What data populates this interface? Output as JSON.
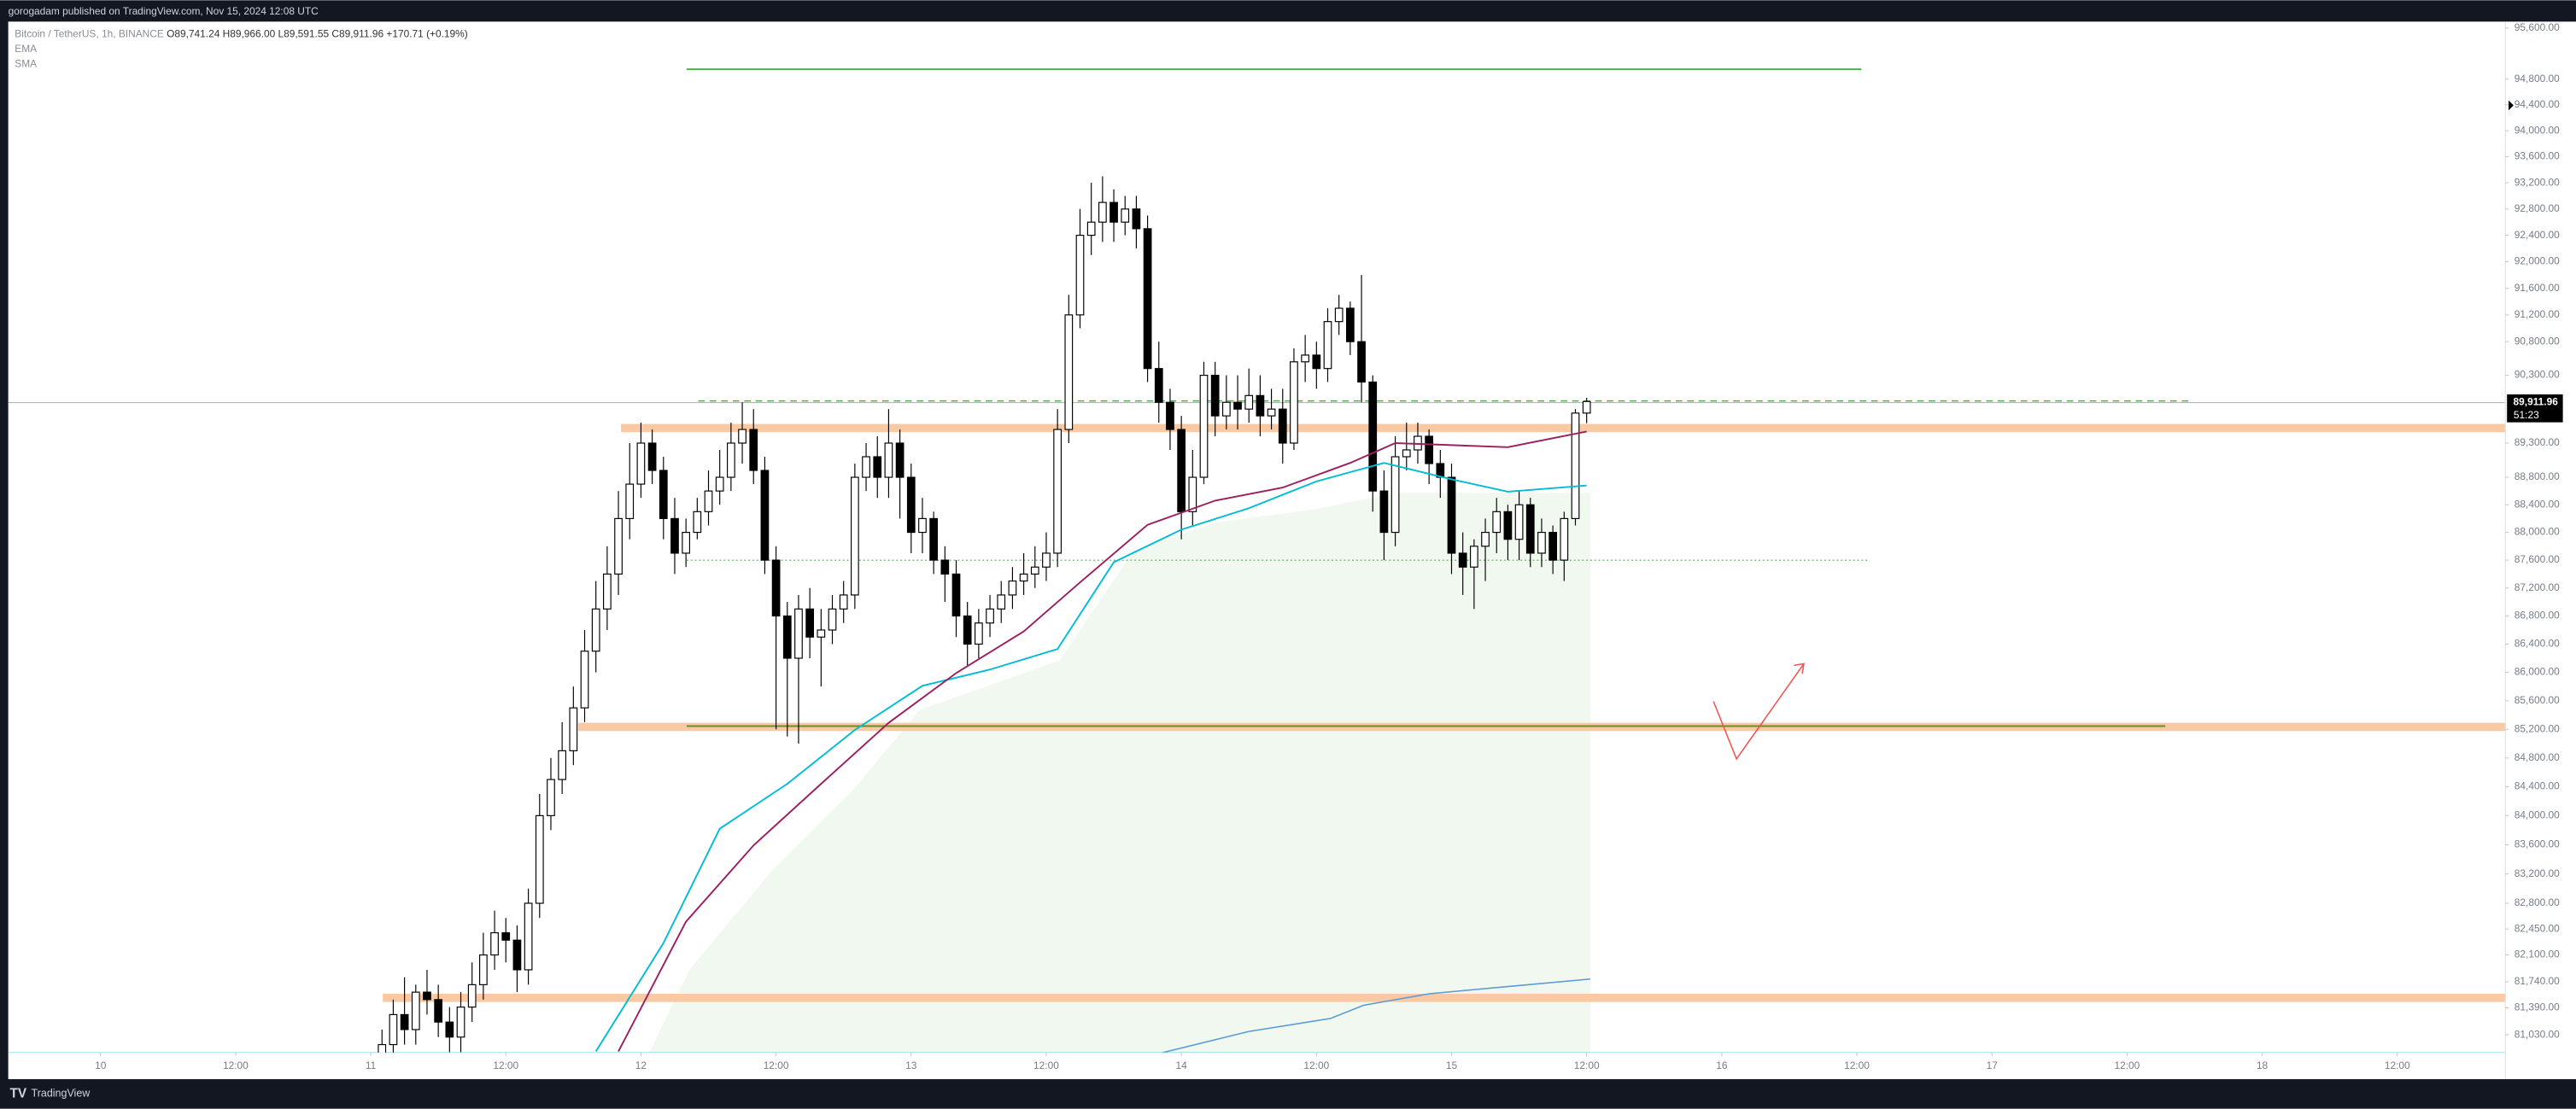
{
  "chart_data": {
    "type": "candlestick",
    "published": "gorogadam published on TradingView.com, Nov 15, 2024 12:08 UTC",
    "symbol": "Bitcoin / TetherUS, 1h, BINANCE",
    "ohlc_label": "O89,741.24 H89,966.00 L89,591.55 C89,911.96 +170.71 (+0.19%)",
    "price_label": "89,911.96",
    "countdown": "51:23",
    "brand": "TradingView",
    "log_scale": true,
    "grid": false,
    "up_color": "#ffffff",
    "down_color": "#000000",
    "xlim": [
      -8.2,
      213.6
    ],
    "ylim": [
      80790,
      95700
    ],
    "xticks": [
      {
        "value": 0,
        "label": "10"
      },
      {
        "value": 12,
        "label": "12:00"
      },
      {
        "value": 24,
        "label": "11"
      },
      {
        "value": 36,
        "label": "12:00"
      },
      {
        "value": 48,
        "label": "12"
      },
      {
        "value": 60,
        "label": "12:00"
      },
      {
        "value": 72,
        "label": "13"
      },
      {
        "value": 84,
        "label": "12:00"
      },
      {
        "value": 96,
        "label": "14"
      },
      {
        "value": 108,
        "label": "12:00"
      },
      {
        "value": 120,
        "label": "15"
      },
      {
        "value": 132,
        "label": "12:00"
      },
      {
        "value": 144,
        "label": "16"
      },
      {
        "value": 156,
        "label": "12:00"
      },
      {
        "value": 168,
        "label": "17"
      },
      {
        "value": 180,
        "label": "12:00"
      },
      {
        "value": 192,
        "label": "18"
      },
      {
        "value": 204,
        "label": "12:00"
      }
    ],
    "yticks": [
      {
        "value": 95600,
        "label": "95,600.00"
      },
      {
        "value": 94800,
        "label": "94,800.00"
      },
      {
        "value": 94400,
        "label": "94,400.00"
      },
      {
        "value": 94000,
        "label": "94,000.00"
      },
      {
        "value": 93600,
        "label": "93,600.00"
      },
      {
        "value": 93200,
        "label": "93,200.00"
      },
      {
        "value": 92800,
        "label": "92,800.00"
      },
      {
        "value": 92400,
        "label": "92,400.00"
      },
      {
        "value": 92000,
        "label": "92,000.00"
      },
      {
        "value": 91600,
        "label": "91,600.00"
      },
      {
        "value": 91200,
        "label": "91,200.00"
      },
      {
        "value": 90800,
        "label": "90,800.00"
      },
      {
        "value": 90300,
        "label": "90,300.00"
      },
      {
        "value": 89300,
        "label": "89,300.00"
      },
      {
        "value": 88800,
        "label": "88,800.00"
      },
      {
        "value": 88400,
        "label": "88,400.00"
      },
      {
        "value": 88000,
        "label": "88,000.00"
      },
      {
        "value": 87600,
        "label": "87,600.00"
      },
      {
        "value": 87200,
        "label": "87,200.00"
      },
      {
        "value": 86800,
        "label": "86,800.00"
      },
      {
        "value": 86400,
        "label": "86,400.00"
      },
      {
        "value": 86000,
        "label": "86,000.00"
      },
      {
        "value": 85600,
        "label": "85,600.00"
      },
      {
        "value": 85200,
        "label": "85,200.00"
      },
      {
        "value": 84800,
        "label": "84,800.00"
      },
      {
        "value": 84400,
        "label": "84,400.00"
      },
      {
        "value": 84000,
        "label": "84,000.00"
      },
      {
        "value": 83600,
        "label": "83,600.00"
      },
      {
        "value": 83200,
        "label": "83,200.00"
      },
      {
        "value": 82800,
        "label": "82,800.00"
      },
      {
        "value": 82450,
        "label": "82,450.00"
      },
      {
        "value": 82100,
        "label": "82,100.00"
      },
      {
        "value": 81740,
        "label": "81,740.00"
      },
      {
        "value": 81390,
        "label": "81,390.00"
      },
      {
        "value": 81030,
        "label": "81,030.00"
      }
    ],
    "x": [
      25,
      26,
      27,
      28,
      29,
      30,
      31,
      32,
      33,
      34,
      35,
      36,
      37,
      38,
      39,
      40,
      41,
      42,
      43,
      44,
      45,
      46,
      47,
      48,
      49,
      50,
      51,
      52,
      53,
      54,
      55,
      56,
      57,
      58,
      59,
      60,
      61,
      62,
      63,
      64,
      65,
      66,
      67,
      68,
      69,
      70,
      71,
      72,
      73,
      74,
      75,
      76,
      77,
      78,
      79,
      80,
      81,
      82,
      83,
      84,
      85,
      86,
      87,
      88,
      89,
      90,
      91,
      92,
      93,
      94,
      95,
      96,
      97,
      98,
      99,
      100,
      101,
      102,
      103,
      104,
      105,
      106,
      107,
      108,
      109,
      110,
      111,
      112,
      113,
      114,
      115,
      116,
      117,
      118,
      119,
      120,
      121,
      122,
      123,
      124,
      125,
      126,
      127,
      128,
      129,
      130,
      131,
      132
    ],
    "open": [
      80700,
      80900,
      81300,
      81100,
      81600,
      81500,
      81200,
      81000,
      81400,
      81700,
      82100,
      82400,
      82300,
      81900,
      82800,
      84000,
      84500,
      84900,
      85500,
      86300,
      86900,
      87400,
      88200,
      88700,
      89300,
      88900,
      88200,
      87700,
      88000,
      88300,
      88600,
      88800,
      89300,
      89500,
      88900,
      87600,
      86800,
      86200,
      86900,
      86500,
      86600,
      86900,
      87100,
      88800,
      89100,
      88800,
      89300,
      88800,
      88000,
      88200,
      87600,
      87400,
      86800,
      86400,
      86700,
      86900,
      87100,
      87300,
      87400,
      87500,
      87700,
      89500,
      91200,
      92400,
      92600,
      92900,
      92600,
      92800,
      92500,
      90400,
      89900,
      89500,
      88300,
      88800,
      90300,
      89700,
      89900,
      89800,
      90000,
      89700,
      89800,
      89300,
      90500,
      90600,
      90400,
      91100,
      91300,
      90800,
      90200,
      88600,
      88000,
      89100,
      89200,
      89400,
      89000,
      88800,
      87700,
      87500,
      87800,
      88000,
      88300,
      87900,
      88400,
      87700,
      88000,
      87600,
      88200,
      89741.24
    ],
    "high": [
      81100,
      81500,
      81800,
      81700,
      81900,
      81700,
      81400,
      81600,
      82000,
      82400,
      82700,
      82600,
      82500,
      83000,
      84300,
      84800,
      85300,
      85800,
      86600,
      87300,
      87800,
      88600,
      89300,
      89600,
      89500,
      89100,
      88500,
      88200,
      88500,
      88900,
      89200,
      89600,
      89900,
      89800,
      89100,
      87800,
      87000,
      87100,
      87200,
      86900,
      87100,
      87300,
      89000,
      89300,
      89400,
      89800,
      89500,
      89000,
      88500,
      88300,
      87800,
      87600,
      87000,
      86900,
      87100,
      87300,
      87500,
      87700,
      87800,
      88000,
      89800,
      91500,
      92800,
      93200,
      93300,
      93100,
      93000,
      93000,
      92700,
      90800,
      90100,
      89700,
      89200,
      90500,
      90500,
      90300,
      90300,
      90400,
      90300,
      90100,
      90100,
      90700,
      90900,
      90800,
      91300,
      91500,
      91400,
      91800,
      90300,
      88900,
      89400,
      89600,
      89600,
      89500,
      89200,
      89000,
      88000,
      87900,
      88200,
      88500,
      88400,
      88600,
      88500,
      88200,
      88100,
      88300,
      89800,
      89966
    ],
    "low": [
      80500,
      80700,
      80900,
      80900,
      81300,
      81000,
      80800,
      80800,
      81200,
      81500,
      81900,
      82000,
      81600,
      81700,
      82600,
      83800,
      84300,
      84700,
      85300,
      86000,
      86600,
      87100,
      87900,
      88500,
      88700,
      87900,
      87400,
      87500,
      87900,
      88100,
      88400,
      88600,
      89000,
      88700,
      87400,
      85200,
      85100,
      85000,
      86200,
      85800,
      86400,
      86700,
      86900,
      88600,
      88500,
      88500,
      88200,
      87700,
      87700,
      87400,
      87000,
      86500,
      86100,
      86200,
      86500,
      86700,
      86900,
      87100,
      87200,
      87300,
      87500,
      89300,
      91000,
      92100,
      92300,
      92300,
      92400,
      92200,
      90200,
      89600,
      89200,
      87900,
      88100,
      88700,
      89400,
      89500,
      89500,
      89600,
      89400,
      89500,
      89000,
      89200,
      90200,
      90100,
      90200,
      90900,
      90600,
      89900,
      88300,
      87600,
      87800,
      88900,
      89000,
      88700,
      88500,
      87400,
      87100,
      86900,
      87300,
      87700,
      87600,
      87600,
      87500,
      87500,
      87400,
      87300,
      88100,
      89591.55
    ],
    "close": [
      80900,
      81300,
      81100,
      81600,
      81500,
      81200,
      81000,
      81400,
      81700,
      82100,
      82400,
      82300,
      81900,
      82800,
      84000,
      84500,
      84900,
      85500,
      86300,
      86900,
      87400,
      88200,
      88700,
      89300,
      88900,
      88200,
      87700,
      88000,
      88300,
      88600,
      88800,
      89300,
      89500,
      88900,
      87600,
      86800,
      86200,
      86900,
      86500,
      86600,
      86900,
      87100,
      88800,
      89100,
      88800,
      89300,
      88800,
      88000,
      88200,
      87600,
      87400,
      86800,
      86400,
      86700,
      86900,
      87100,
      87300,
      87400,
      87500,
      87700,
      89500,
      91200,
      92400,
      92600,
      92900,
      92600,
      92800,
      92500,
      90400,
      89900,
      89500,
      88300,
      88800,
      90300,
      89700,
      89900,
      89800,
      90000,
      89700,
      89800,
      89300,
      90500,
      90600,
      90400,
      91100,
      91300,
      90800,
      90200,
      88600,
      88000,
      89100,
      89200,
      89400,
      89000,
      88800,
      87700,
      87500,
      87800,
      88000,
      88300,
      87900,
      88400,
      87700,
      88000,
      87600,
      88200,
      89741.24,
      89911.96
    ],
    "series": [
      {
        "name": "EMA",
        "color": "#00bcd4",
        "x": [
          44,
          50,
          55,
          61,
          67,
          73,
          79,
          85,
          90,
          96,
          102,
          108,
          114,
          120,
          125,
          132
        ],
        "values": [
          80810,
          82260,
          83820,
          84440,
          85190,
          85810,
          86040,
          86330,
          87570,
          88040,
          88350,
          88740,
          89010,
          88770,
          88590,
          88680
        ]
      },
      {
        "name": "SMA",
        "color": "#9c1f5e",
        "x": [
          46,
          52,
          58,
          64,
          70,
          76,
          82,
          87,
          93,
          99,
          105,
          111,
          115,
          120,
          125,
          132
        ],
        "values": [
          80810,
          82550,
          83590,
          84440,
          85290,
          85990,
          86580,
          87280,
          88110,
          88460,
          88650,
          89010,
          89300,
          89270,
          89240,
          89470
        ]
      }
    ]
  }
}
